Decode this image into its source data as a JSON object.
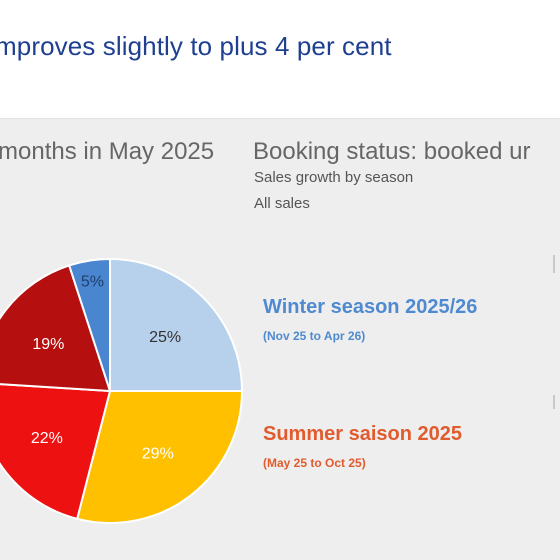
{
  "header": {
    "headline": "mproves slightly to plus 4 per cent"
  },
  "left_panel": {
    "title": "months in May 2025"
  },
  "right_panel": {
    "title": "Booking status: booked ur",
    "subtitle": "Sales growth by season",
    "scope": "All sales"
  },
  "legend": {
    "winter_title": "Winter season 2025/26",
    "winter_range": "(Nov 25 to Apr 26)",
    "summer_title": "Summer saison 2025",
    "summer_range": "(May 25 to Oct 25)"
  },
  "colors": {
    "winter_text": "#4f8ad0",
    "summer_text": "#e15b2e"
  },
  "chart_data": {
    "type": "pie",
    "title": "",
    "slices": [
      {
        "label": "25%",
        "value": 25,
        "color": "#b7d1ec",
        "text_color": "#333333"
      },
      {
        "label": "29%",
        "value": 29,
        "color": "#ffc000",
        "text_color": "#ffffff"
      },
      {
        "label": "22%",
        "value": 22,
        "color": "#ee1111",
        "text_color": "#ffffff"
      },
      {
        "label": "19%",
        "value": 19,
        "color": "#b50f0f",
        "text_color": "#ffffff"
      },
      {
        "label": "5%",
        "value": 5,
        "color": "#4a86cf",
        "text_color": "#1f3f6e"
      }
    ],
    "start": "12 o'clock",
    "direction": "clockwise"
  }
}
